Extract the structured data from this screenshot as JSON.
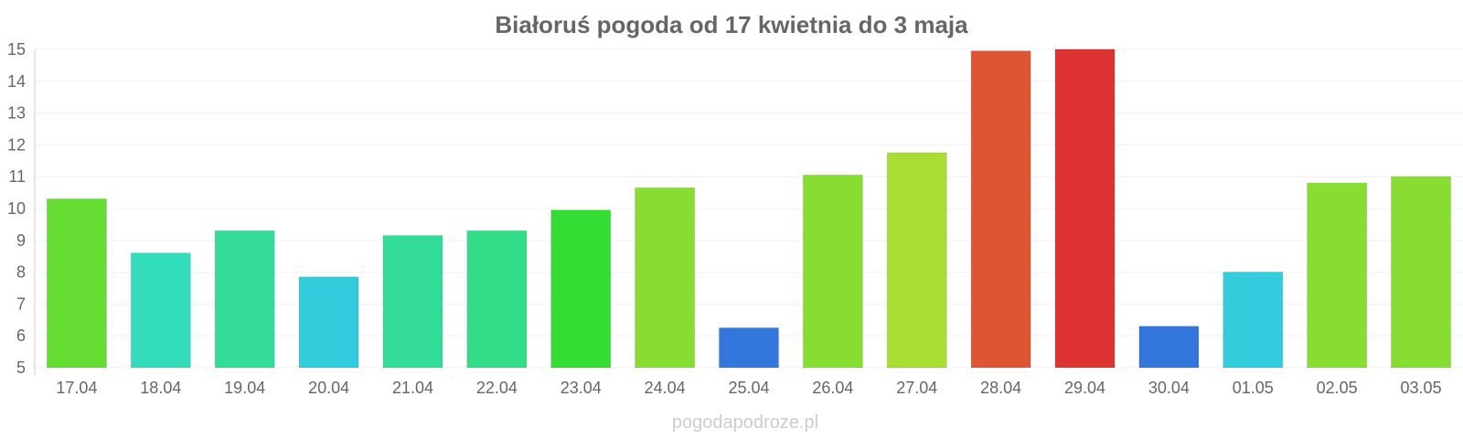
{
  "chart_data": {
    "type": "bar",
    "title": "Białoruś pogoda od 17 kwietnia do 3 maja",
    "xlabel": "",
    "ylabel": "",
    "ylim": [
      5,
      15
    ],
    "yticks": [
      5,
      6,
      7,
      8,
      9,
      10,
      11,
      12,
      13,
      14,
      15
    ],
    "grid": true,
    "categories": [
      "17.04",
      "18.04",
      "19.04",
      "20.04",
      "21.04",
      "22.04",
      "23.04",
      "24.04",
      "25.04",
      "26.04",
      "27.04",
      "28.04",
      "29.04",
      "30.04",
      "01.05",
      "02.05",
      "03.05"
    ],
    "values": [
      10.3,
      8.6,
      9.3,
      7.85,
      9.15,
      9.3,
      9.95,
      10.65,
      6.25,
      11.05,
      11.75,
      14.95,
      15.0,
      6.3,
      8.0,
      10.8,
      11.0
    ],
    "colors": [
      "#66dd33",
      "#33ddbb",
      "#33dd99",
      "#33ccdd",
      "#33dd99",
      "#33dd88",
      "#33dd33",
      "#88dd33",
      "#3377dd",
      "#88dd33",
      "#aadd33",
      "#dd5533",
      "#dd3333",
      "#3377dd",
      "#33ccdd",
      "#88dd33",
      "#88dd33"
    ]
  },
  "footer": {
    "credit": "pogodapodroze.pl"
  }
}
